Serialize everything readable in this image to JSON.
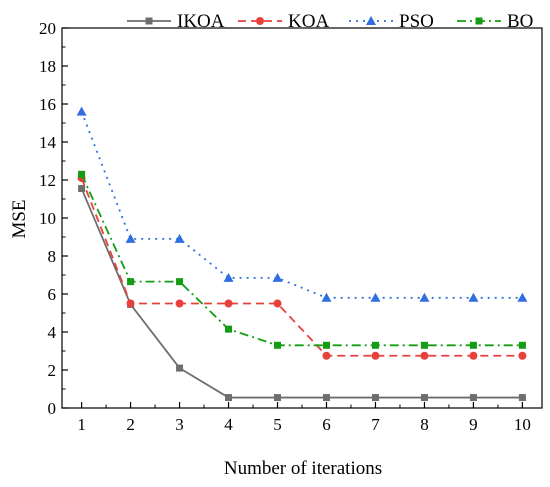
{
  "chart_data": {
    "type": "line",
    "title": "",
    "xlabel": "Number of iterations",
    "ylabel": "MSE",
    "x": [
      1,
      2,
      3,
      4,
      5,
      6,
      7,
      8,
      9,
      10
    ],
    "xlim": [
      0.6,
      10.4
    ],
    "ylim": [
      0,
      20
    ],
    "x_ticks": [
      "1",
      "2",
      "3",
      "4",
      "5",
      "6",
      "7",
      "8",
      "9",
      "10"
    ],
    "y_ticks": [
      "0",
      "2",
      "4",
      "6",
      "8",
      "10",
      "12",
      "14",
      "16",
      "18",
      "20"
    ],
    "grid": false,
    "legend_position": "top",
    "series": [
      {
        "name": "IKOA",
        "color": "#6e6e6e",
        "line": "solid",
        "marker": "square",
        "values": [
          11.55,
          5.45,
          2.1,
          0.55,
          0.55,
          0.55,
          0.55,
          0.55,
          0.55,
          0.55
        ]
      },
      {
        "name": "KOA",
        "color": "#e8413c",
        "line": "dashed",
        "marker": "circle",
        "values": [
          12.1,
          5.5,
          5.5,
          5.5,
          5.5,
          2.75,
          2.75,
          2.75,
          2.75,
          2.75
        ]
      },
      {
        "name": "PSO",
        "color": "#2f6fe0",
        "line": "dotted",
        "marker": "triangle",
        "values": [
          15.6,
          8.9,
          8.9,
          6.85,
          6.85,
          5.8,
          5.8,
          5.8,
          5.8,
          5.8
        ]
      },
      {
        "name": "BO",
        "color": "#149c14",
        "line": "dashdot",
        "marker": "square",
        "values": [
          12.3,
          6.65,
          6.65,
          4.15,
          3.3,
          3.3,
          3.3,
          3.3,
          3.3,
          3.3
        ]
      }
    ]
  }
}
